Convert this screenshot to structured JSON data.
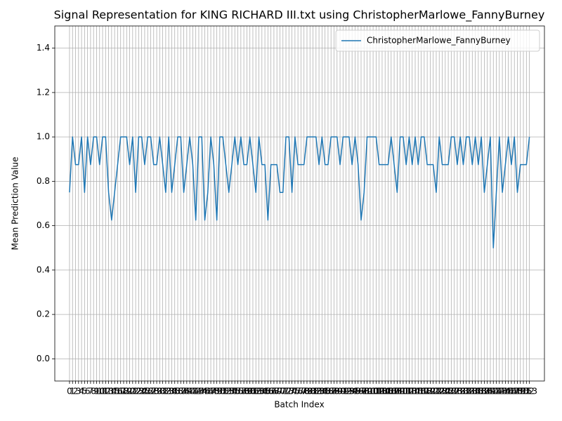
{
  "chart_data": {
    "type": "line",
    "title": "Signal Representation for KING RICHARD III.txt using ChristopherMarlowe_FannyBurney",
    "xlabel": "Batch Index",
    "ylabel": "Mean Prediction Value",
    "x": [
      0,
      1,
      2,
      3,
      4,
      5,
      6,
      7,
      8,
      9,
      10,
      11,
      12,
      13,
      14,
      15,
      16,
      17,
      18,
      19,
      20,
      21,
      22,
      23,
      24,
      25,
      26,
      27,
      28,
      29,
      30,
      31,
      32,
      33,
      34,
      35,
      36,
      37,
      38,
      39,
      40,
      41,
      42,
      43,
      44,
      45,
      46,
      47,
      48,
      49,
      50,
      51,
      52,
      53,
      54,
      55,
      56,
      57,
      58,
      59,
      60,
      61,
      62,
      63,
      64,
      65,
      66,
      67,
      68,
      69,
      70,
      71,
      72,
      73,
      74,
      75,
      76,
      77,
      78,
      79,
      80,
      81,
      82,
      83,
      84,
      85,
      86,
      87,
      88,
      89,
      90,
      91,
      92,
      93,
      94,
      95,
      96,
      97,
      98,
      99,
      100,
      101,
      102,
      103,
      104,
      105,
      106,
      107,
      108,
      109,
      110,
      111,
      112,
      113,
      114,
      115,
      116,
      117,
      118,
      119,
      120,
      121,
      122,
      123,
      124,
      125,
      126,
      127,
      128,
      129,
      130,
      131,
      132,
      133,
      134,
      135,
      136,
      137,
      138,
      139,
      140,
      141,
      142,
      143,
      144,
      145,
      146,
      147,
      148,
      149,
      150,
      151,
      152,
      153
    ],
    "series": [
      {
        "name": "ChristopherMarlowe_FannyBurney",
        "color": "#1f77b4",
        "values": [
          0.75,
          1.0,
          0.875,
          0.875,
          1.0,
          0.75,
          1.0,
          0.875,
          1.0,
          1.0,
          0.875,
          1.0,
          1.0,
          0.75,
          0.625,
          0.75,
          0.875,
          1.0,
          1.0,
          1.0,
          0.875,
          1.0,
          0.75,
          1.0,
          1.0,
          0.875,
          1.0,
          1.0,
          0.875,
          0.875,
          1.0,
          0.875,
          0.75,
          1.0,
          0.75,
          0.875,
          1.0,
          1.0,
          0.75,
          0.875,
          1.0,
          0.875,
          0.625,
          1.0,
          1.0,
          0.625,
          0.75,
          1.0,
          0.875,
          0.625,
          1.0,
          1.0,
          0.875,
          0.75,
          0.875,
          1.0,
          0.875,
          1.0,
          0.875,
          0.875,
          1.0,
          0.875,
          0.75,
          1.0,
          0.875,
          0.875,
          0.625,
          0.875,
          0.875,
          0.875,
          0.75,
          0.75,
          1.0,
          1.0,
          0.75,
          1.0,
          0.875,
          0.875,
          0.875,
          1.0,
          1.0,
          1.0,
          1.0,
          0.875,
          1.0,
          0.875,
          0.875,
          1.0,
          1.0,
          1.0,
          0.875,
          1.0,
          1.0,
          1.0,
          0.875,
          1.0,
          0.875,
          0.625,
          0.75,
          1.0,
          1.0,
          1.0,
          1.0,
          0.875,
          0.875,
          0.875,
          0.875,
          1.0,
          0.875,
          0.75,
          1.0,
          1.0,
          0.875,
          1.0,
          0.875,
          1.0,
          0.875,
          1.0,
          1.0,
          0.875,
          0.875,
          0.875,
          0.75,
          1.0,
          0.875,
          0.875,
          0.875,
          1.0,
          1.0,
          0.875,
          1.0,
          0.875,
          1.0,
          1.0,
          0.875,
          1.0,
          0.875,
          1.0,
          0.75,
          0.875,
          1.0,
          0.5,
          0.75,
          1.0,
          0.75,
          0.875,
          1.0,
          0.875,
          1.0,
          0.75,
          0.875,
          0.875,
          0.875,
          1.0
        ]
      }
    ],
    "xlim": [
      -4.9,
      158
    ],
    "xticks": [
      0,
      1,
      2,
      3,
      4,
      5,
      6,
      7,
      8,
      9,
      10,
      11,
      12,
      13,
      14,
      15,
      16,
      17,
      18,
      19,
      20,
      21,
      22,
      23,
      24,
      25,
      26,
      27,
      28,
      29,
      30,
      31,
      32,
      33,
      34,
      35,
      36,
      37,
      38,
      39,
      40,
      41,
      42,
      43,
      44,
      45,
      46,
      47,
      48,
      49,
      50,
      51,
      52,
      53,
      54,
      55,
      56,
      57,
      58,
      59,
      60,
      61,
      62,
      63,
      64,
      65,
      66,
      67,
      68,
      69,
      70,
      71,
      72,
      73,
      74,
      75,
      76,
      77,
      78,
      79,
      80,
      81,
      82,
      83,
      84,
      85,
      86,
      87,
      88,
      89,
      90,
      91,
      92,
      93,
      94,
      95,
      96,
      97,
      98,
      99,
      100,
      101,
      102,
      103,
      104,
      105,
      106,
      107,
      108,
      109,
      110,
      111,
      112,
      113,
      114,
      115,
      116,
      117,
      118,
      119,
      120,
      121,
      122,
      123,
      124,
      125,
      126,
      127,
      128,
      129,
      130,
      131,
      132,
      133,
      134,
      135,
      136,
      137,
      138,
      139,
      140,
      141,
      142,
      143,
      144,
      145,
      146,
      147,
      148,
      149,
      150,
      151,
      152,
      153
    ],
    "ylim": [
      -0.1,
      1.5
    ],
    "yticks": [
      {
        "value": 0,
        "label": "0.0"
      },
      0.2,
      0.4,
      0.6,
      0.8,
      {
        "value": 1,
        "label": "1.0"
      },
      1.2,
      1.4
    ],
    "grid": true,
    "legend": "upper right"
  }
}
